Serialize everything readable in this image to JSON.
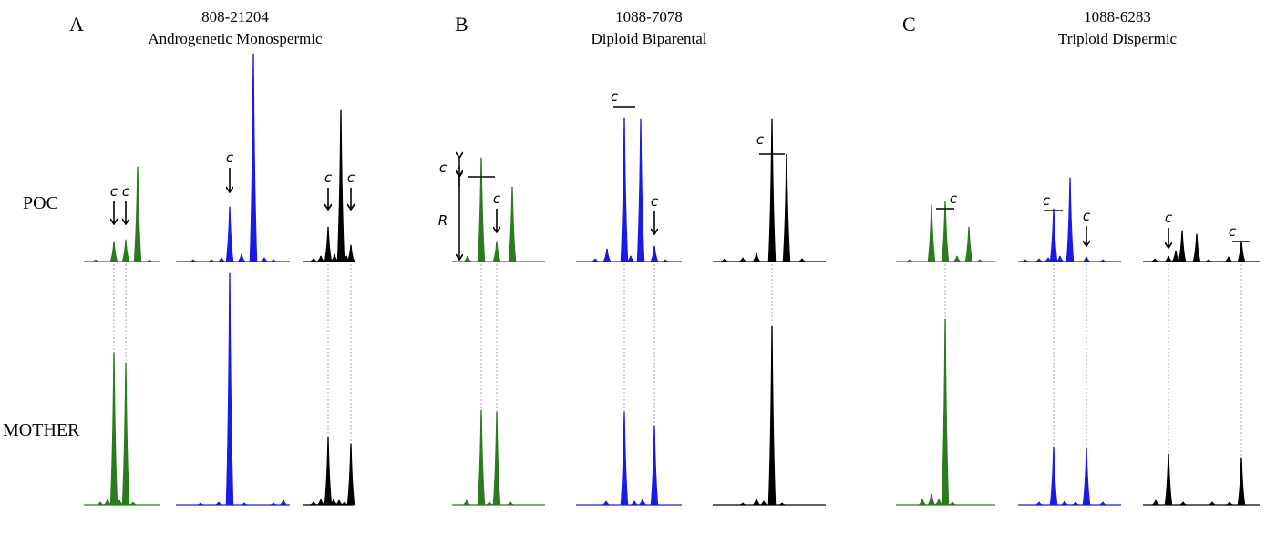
{
  "colors": {
    "green": "#2a7a1e",
    "blue": "#1a1ae6",
    "black": "#000000",
    "guide": "#aaaaaa"
  },
  "row_labels": {
    "poc": "POC",
    "mother": "MOTHER"
  },
  "annotation_symbol": "c",
  "r_symbol": "R",
  "panels": [
    {
      "letter": "A",
      "sample": "808-21204",
      "type": "Androgenetic Monospermic"
    },
    {
      "letter": "B",
      "sample": "1088-7078",
      "type": "Diploid Biparental"
    },
    {
      "letter": "C",
      "sample": "1088-6283",
      "type": "Triploid Dispermic"
    }
  ]
}
